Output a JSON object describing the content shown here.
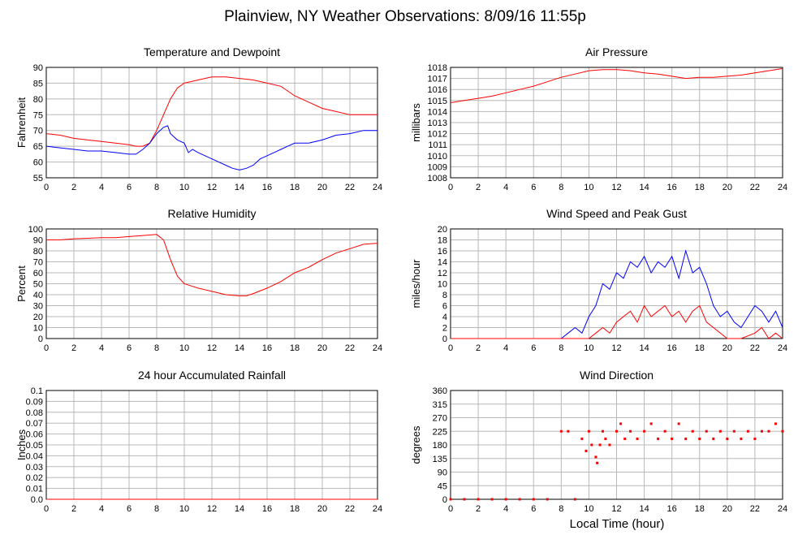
{
  "page": {
    "title": "Plainview, NY Weather Observations: 8/09/16 11:55p",
    "footer_xlabel": "Local Time (hour)"
  },
  "chart_data": [
    {
      "id": "temp",
      "type": "line",
      "title": "Temperature and Dewpoint",
      "xlabel": "",
      "ylabel": "Fahrenheit",
      "xlim": [
        0,
        24
      ],
      "ylim": [
        55,
        90
      ],
      "x_ticks": [
        0,
        2,
        4,
        6,
        8,
        10,
        12,
        14,
        16,
        18,
        20,
        22,
        24
      ],
      "y_ticks": [
        55,
        60,
        65,
        70,
        75,
        80,
        85,
        90
      ],
      "grid": true,
      "series": [
        {
          "color": "#ff0000",
          "x": [
            0,
            1,
            2,
            3,
            4,
            5,
            6,
            6.5,
            7,
            7.5,
            8,
            8.5,
            9,
            9.5,
            10,
            10.5,
            11,
            11.5,
            12,
            12.5,
            13,
            14,
            15,
            16,
            17,
            18,
            19,
            20,
            21,
            22,
            23,
            24
          ],
          "y": [
            69,
            68.5,
            67.5,
            67,
            66.5,
            66,
            65.5,
            65,
            65,
            66,
            70,
            75,
            80,
            83.5,
            85,
            85.5,
            86,
            86.5,
            87,
            87,
            87,
            86.5,
            86,
            85,
            84,
            81,
            79,
            77,
            76,
            75,
            75,
            75
          ]
        },
        {
          "color": "#0000ff",
          "x": [
            0,
            1,
            2,
            3,
            4,
            5,
            6,
            6.5,
            7,
            7.5,
            8,
            8.5,
            8.8,
            9,
            9.5,
            10,
            10.3,
            10.6,
            11,
            11.5,
            12,
            12.5,
            13,
            13.5,
            14,
            14.5,
            15,
            15.5,
            16,
            16.5,
            17,
            17.5,
            18,
            19,
            20,
            21,
            22,
            23,
            24
          ],
          "y": [
            65,
            64.5,
            64,
            63.5,
            63.5,
            63,
            62.5,
            62.5,
            64,
            66,
            69,
            71,
            71.5,
            69,
            67,
            66,
            63,
            64,
            63,
            62,
            61,
            60,
            59,
            58,
            57.5,
            58,
            59,
            61,
            62,
            63,
            64,
            65,
            66,
            66,
            67,
            68.5,
            69,
            70,
            70
          ]
        }
      ]
    },
    {
      "id": "pressure",
      "type": "line",
      "title": "Air Pressure",
      "xlabel": "",
      "ylabel": "millibars",
      "xlim": [
        0,
        24
      ],
      "ylim": [
        1008,
        1018
      ],
      "x_ticks": [
        0,
        2,
        4,
        6,
        8,
        10,
        12,
        14,
        16,
        18,
        20,
        22,
        24
      ],
      "y_ticks": [
        1008,
        1009,
        1010,
        1011,
        1012,
        1013,
        1014,
        1015,
        1016,
        1017,
        1018
      ],
      "grid": true,
      "series": [
        {
          "color": "#ff0000",
          "x": [
            0,
            1,
            2,
            3,
            4,
            5,
            6,
            7,
            8,
            9,
            10,
            11,
            12,
            13,
            14,
            15,
            16,
            17,
            18,
            19,
            20,
            21,
            22,
            23,
            24
          ],
          "y": [
            1014.8,
            1015,
            1015.2,
            1015.4,
            1015.7,
            1016,
            1016.3,
            1016.7,
            1017.1,
            1017.4,
            1017.7,
            1017.8,
            1017.8,
            1017.7,
            1017.5,
            1017.4,
            1017.2,
            1017,
            1017.1,
            1017.1,
            1017.2,
            1017.3,
            1017.5,
            1017.7,
            1017.9
          ]
        }
      ]
    },
    {
      "id": "humidity",
      "type": "line",
      "title": "Relative Humidity",
      "xlabel": "",
      "ylabel": "Percent",
      "xlim": [
        0,
        24
      ],
      "ylim": [
        0,
        100
      ],
      "x_ticks": [
        0,
        2,
        4,
        6,
        8,
        10,
        12,
        14,
        16,
        18,
        20,
        22,
        24
      ],
      "y_ticks": [
        0,
        10,
        20,
        30,
        40,
        50,
        60,
        70,
        80,
        90,
        100
      ],
      "grid": true,
      "series": [
        {
          "color": "#ff0000",
          "x": [
            0,
            1,
            2,
            3,
            4,
            5,
            6,
            7,
            8,
            8.5,
            9,
            9.5,
            10,
            10.5,
            11,
            12,
            13,
            14,
            14.5,
            15,
            16,
            17,
            18,
            19,
            20,
            21,
            22,
            23,
            24
          ],
          "y": [
            90,
            90,
            91,
            91.5,
            92,
            92,
            93,
            94,
            95,
            90,
            72,
            57,
            50,
            48,
            46,
            43,
            40,
            39,
            39,
            41,
            46,
            52,
            60,
            65,
            72,
            78,
            82,
            86,
            87
          ]
        }
      ]
    },
    {
      "id": "wind",
      "type": "line",
      "title": "Wind Speed and Peak Gust",
      "xlabel": "",
      "ylabel": "miles/hour",
      "xlim": [
        0,
        24
      ],
      "ylim": [
        0,
        20
      ],
      "x_ticks": [
        0,
        2,
        4,
        6,
        8,
        10,
        12,
        14,
        16,
        18,
        20,
        22,
        24
      ],
      "y_ticks": [
        0,
        2,
        4,
        6,
        8,
        10,
        12,
        14,
        16,
        18,
        20
      ],
      "grid": true,
      "series": [
        {
          "color": "#0000ff",
          "x": [
            0,
            8,
            8.5,
            9,
            9.5,
            10,
            10.5,
            11,
            11.5,
            12,
            12.5,
            13,
            13.5,
            14,
            14.5,
            15,
            15.5,
            16,
            16.5,
            17,
            17.5,
            18,
            18.5,
            19,
            19.5,
            20,
            20.5,
            21,
            21.5,
            22,
            22.5,
            23,
            23.5,
            24
          ],
          "y": [
            0,
            0,
            1,
            2,
            1,
            4,
            6,
            10,
            9,
            12,
            11,
            14,
            13,
            15,
            12,
            14,
            13,
            15,
            11,
            16,
            12,
            13,
            10,
            6,
            4,
            5,
            3,
            2,
            4,
            6,
            5,
            3,
            5,
            2
          ]
        },
        {
          "color": "#ff0000",
          "x": [
            0,
            10,
            10.5,
            11,
            11.5,
            12,
            12.5,
            13,
            13.5,
            14,
            14.5,
            15,
            15.5,
            16,
            16.5,
            17,
            17.5,
            18,
            18.5,
            19,
            20,
            21,
            22,
            22.5,
            23,
            23.5,
            24
          ],
          "y": [
            0,
            0,
            1,
            2,
            1,
            3,
            4,
            5,
            3,
            6,
            4,
            5,
            6,
            4,
            5,
            3,
            5,
            6,
            3,
            2,
            0,
            0,
            1,
            2,
            0,
            1,
            0
          ]
        }
      ]
    },
    {
      "id": "rain",
      "type": "line",
      "title": "24 hour Accumulated Rainfall",
      "xlabel": "",
      "ylabel": "Inches",
      "xlim": [
        0,
        24
      ],
      "ylim": [
        0,
        0.1
      ],
      "x_ticks": [
        0,
        2,
        4,
        6,
        8,
        10,
        12,
        14,
        16,
        18,
        20,
        22,
        24
      ],
      "y_ticks": [
        "0.0",
        "0.01",
        "0.02",
        "0.03",
        "0.04",
        "0.05",
        "0.06",
        "0.07",
        "0.08",
        "0.09",
        "0.1"
      ],
      "grid": true,
      "series": [
        {
          "color": "#ff0000",
          "x": [
            0,
            24
          ],
          "y": [
            0,
            0
          ]
        }
      ]
    },
    {
      "id": "winddir",
      "type": "scatter",
      "title": "Wind Direction",
      "xlabel": "Local Time (hour)",
      "ylabel": "degrees",
      "xlim": [
        0,
        24
      ],
      "ylim": [
        0,
        360
      ],
      "x_ticks": [
        0,
        2,
        4,
        6,
        8,
        10,
        12,
        14,
        16,
        18,
        20,
        22,
        24
      ],
      "y_ticks": [
        0,
        45,
        90,
        135,
        180,
        225,
        270,
        315,
        360
      ],
      "grid": true,
      "series": [
        {
          "color": "#ff0000",
          "x": [
            0,
            1,
            2,
            3,
            4,
            5,
            6,
            7,
            8,
            8.5,
            9,
            9.5,
            9.8,
            10,
            10.2,
            10.5,
            10.6,
            10.8,
            11,
            11.2,
            11.5,
            12,
            12.3,
            12.6,
            13,
            13.5,
            14,
            14.5,
            15,
            15.5,
            16,
            16.5,
            17,
            17.5,
            18,
            18.5,
            19,
            19.5,
            20,
            20.5,
            21,
            21.5,
            22,
            22.5,
            23,
            23.5,
            24
          ],
          "y": [
            0,
            0,
            0,
            0,
            0,
            0,
            0,
            0,
            225,
            225,
            0,
            200,
            160,
            225,
            180,
            140,
            120,
            180,
            225,
            200,
            180,
            225,
            250,
            200,
            225,
            200,
            225,
            250,
            200,
            225,
            200,
            250,
            200,
            225,
            200,
            225,
            200,
            225,
            200,
            225,
            200,
            225,
            200,
            225,
            225,
            250,
            225
          ]
        }
      ]
    }
  ]
}
